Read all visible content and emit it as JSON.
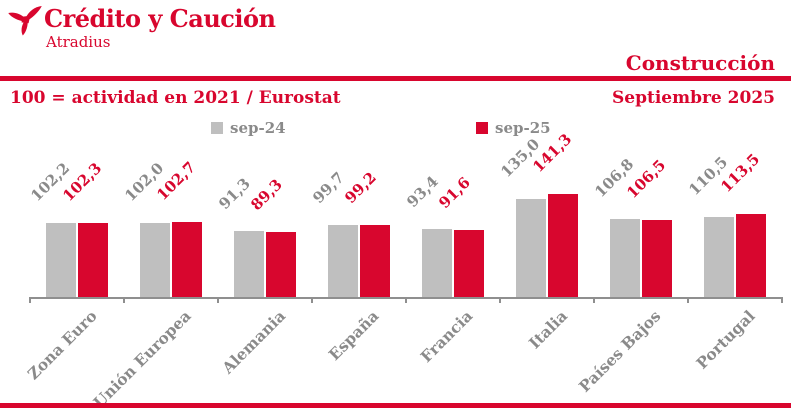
{
  "header": {
    "brand_title": "Crédito y Caución",
    "brand_subtitle": "Atradius",
    "section_title": "Construcción"
  },
  "subheader": {
    "index_note": "100 = actividad en 2021 / Eurostat",
    "report_date": "Septiembre 2025"
  },
  "colors": {
    "brand_red": "#d8062e",
    "bar_gray": "#bfbfbf",
    "text_gray": "#8a8a8a",
    "axis_gray": "#8f8f8f"
  },
  "icons": {
    "logo": "credito-y-caucion-mark"
  },
  "chart_data": {
    "type": "bar",
    "title": "Construcción",
    "subtitle": "Septiembre 2025",
    "note": "100 = actividad en 2021 / Eurostat",
    "categories": [
      "Zona Euro",
      "Unión Europea",
      "Alemania",
      "España",
      "Francia",
      "Italia",
      "Países Bajos",
      "Portugal"
    ],
    "series": [
      {
        "name": "sep-24",
        "color_key": "bar_gray",
        "label_color_key": "text_gray",
        "values": [
          102.2,
          102.0,
          91.3,
          99.7,
          93.4,
          135.0,
          106.8,
          110.5
        ]
      },
      {
        "name": "sep-25",
        "color_key": "brand_red",
        "label_color_key": "brand_red",
        "values": [
          102.3,
          102.7,
          89.3,
          99.2,
          91.6,
          141.3,
          106.5,
          113.5
        ]
      }
    ],
    "decimal_separator": ",",
    "ylim": [
      0,
      160
    ],
    "grid": false,
    "legend_position": "top",
    "value_labels_rotation_deg": -45,
    "category_labels_rotation_deg": -45
  }
}
